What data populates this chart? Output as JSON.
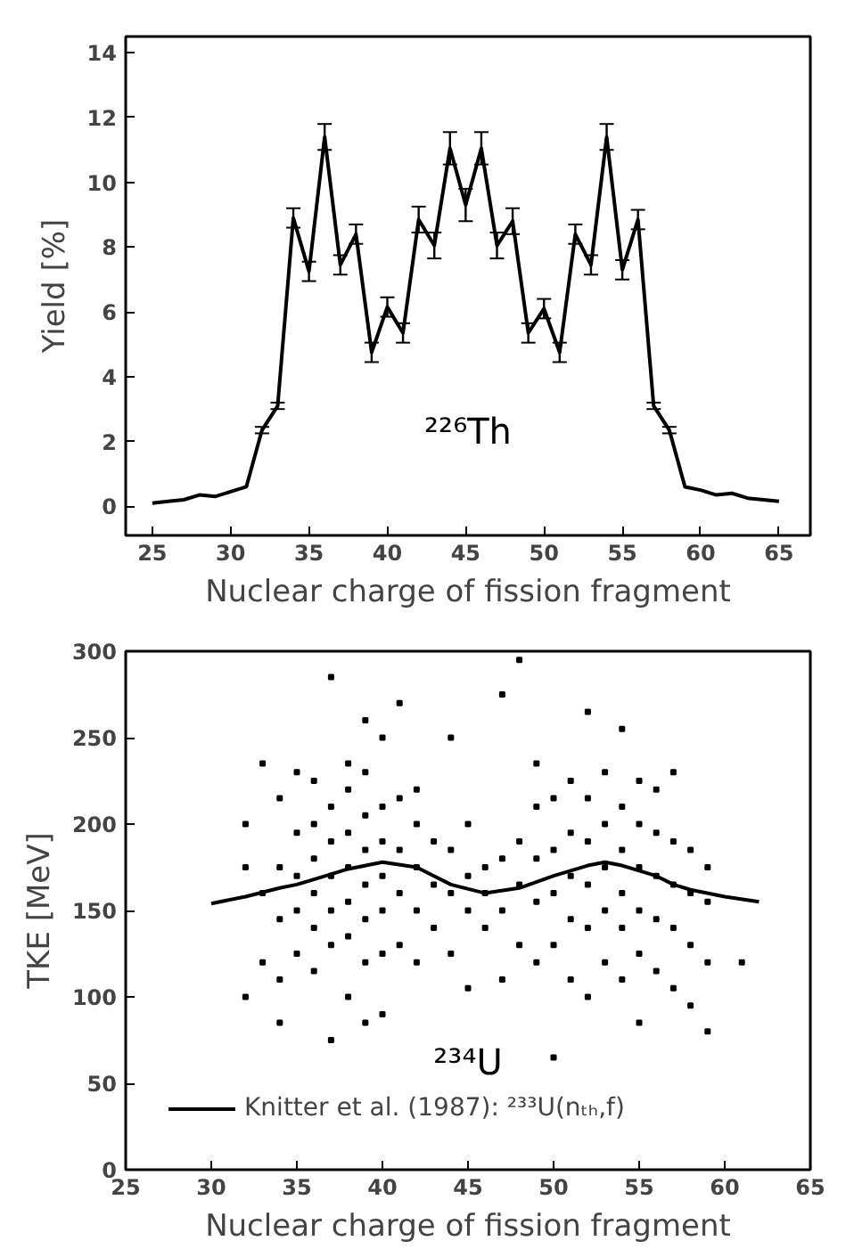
{
  "chart_data": [
    {
      "type": "line",
      "xlabel": "Nuclear charge of fission fragment",
      "ylabel": "Yield [%]",
      "xlim": [
        23.3,
        67
      ],
      "ylim": [
        -0.9,
        14.5
      ],
      "xticks": [
        25,
        30,
        35,
        40,
        45,
        50,
        55,
        60,
        65
      ],
      "yticks": [
        0,
        2,
        4,
        6,
        8,
        10,
        12,
        14
      ],
      "grid": false,
      "legend": false,
      "annotations": [
        "²²⁶Th"
      ],
      "series": [
        {
          "color": "#000000",
          "x": [
            25,
            26,
            27,
            28,
            29,
            30,
            31,
            32,
            33,
            34,
            35,
            36,
            37,
            38,
            39,
            40,
            41,
            42,
            43,
            44,
            45,
            46,
            47,
            48,
            49,
            50,
            51,
            52,
            53,
            54,
            55,
            56,
            57,
            58,
            59,
            60,
            61,
            62,
            63,
            64,
            65
          ],
          "values": [
            0.1,
            0.15,
            0.2,
            0.35,
            0.3,
            0.45,
            0.6,
            2.35,
            3.1,
            8.9,
            7.25,
            11.4,
            7.45,
            8.4,
            4.75,
            6.15,
            5.35,
            8.85,
            8.05,
            11.05,
            9.3,
            11.05,
            8.05,
            8.8,
            5.35,
            6.1,
            4.75,
            8.4,
            7.45,
            11.4,
            7.3,
            8.85,
            3.1,
            2.35,
            0.6,
            0.5,
            0.35,
            0.4,
            0.25,
            0.2,
            0.15
          ],
          "errors": [
            null,
            null,
            null,
            null,
            null,
            null,
            null,
            0.1,
            0.1,
            0.3,
            0.3,
            0.4,
            0.3,
            0.3,
            0.3,
            0.3,
            0.3,
            0.4,
            0.4,
            0.5,
            0.5,
            0.5,
            0.4,
            0.4,
            0.3,
            0.3,
            0.3,
            0.3,
            0.3,
            0.4,
            0.3,
            0.3,
            0.1,
            0.1,
            null,
            null,
            null,
            null,
            null,
            null,
            null
          ]
        }
      ]
    },
    {
      "type": "scatter",
      "xlabel": "Nuclear charge of fission fragment",
      "ylabel": "TKE [MeV]",
      "xlim": [
        25,
        65
      ],
      "ylim": [
        0,
        300
      ],
      "xticks": [
        25,
        30,
        35,
        40,
        45,
        50,
        55,
        60,
        65
      ],
      "yticks": [
        0,
        50,
        100,
        150,
        200,
        250,
        300
      ],
      "grid": false,
      "legend": "bottom left",
      "annotations": [
        "²³⁴U"
      ],
      "series": [
        {
          "type": "scatter",
          "color": "#000000",
          "marker": "square",
          "x": [
            32,
            32,
            32,
            33,
            33,
            33,
            34,
            34,
            34,
            34,
            34,
            35,
            35,
            35,
            35,
            35,
            36,
            36,
            36,
            36,
            36,
            36,
            37,
            37,
            37,
            37,
            37,
            37,
            37,
            38,
            38,
            38,
            38,
            38,
            38,
            38,
            39,
            39,
            39,
            39,
            39,
            39,
            39,
            39,
            40,
            40,
            40,
            40,
            40,
            40,
            40,
            41,
            41,
            41,
            41,
            41,
            42,
            42,
            42,
            42,
            42,
            43,
            43,
            43,
            44,
            44,
            44,
            44,
            45,
            45,
            45,
            45,
            46,
            46,
            46,
            47,
            47,
            47,
            47,
            48,
            48,
            48,
            48,
            49,
            49,
            49,
            49,
            49,
            50,
            50,
            50,
            50,
            50,
            51,
            51,
            51,
            51,
            51,
            52,
            52,
            52,
            52,
            52,
            52,
            53,
            53,
            53,
            53,
            53,
            54,
            54,
            54,
            54,
            54,
            54,
            55,
            55,
            55,
            55,
            55,
            55,
            56,
            56,
            56,
            56,
            56,
            57,
            57,
            57,
            57,
            57,
            58,
            58,
            58,
            58,
            59,
            59,
            59,
            59,
            61
          ],
          "values": [
            100,
            175,
            200,
            120,
            160,
            235,
            110,
            145,
            175,
            215,
            85,
            125,
            150,
            170,
            195,
            230,
            115,
            140,
            160,
            180,
            200,
            225,
            75,
            130,
            150,
            170,
            190,
            210,
            285,
            100,
            135,
            155,
            175,
            195,
            220,
            235,
            85,
            120,
            145,
            165,
            185,
            205,
            230,
            260,
            90,
            125,
            150,
            170,
            190,
            210,
            250,
            130,
            160,
            185,
            215,
            270,
            120,
            150,
            175,
            200,
            220,
            140,
            165,
            190,
            125,
            160,
            185,
            250,
            105,
            150,
            170,
            200,
            140,
            160,
            175,
            110,
            150,
            180,
            275,
            130,
            165,
            190,
            295,
            120,
            155,
            180,
            210,
            235,
            65,
            130,
            160,
            185,
            215,
            110,
            145,
            170,
            195,
            225,
            100,
            140,
            165,
            190,
            215,
            265,
            120,
            150,
            175,
            200,
            230,
            110,
            140,
            160,
            185,
            210,
            255,
            85,
            125,
            150,
            175,
            200,
            225,
            115,
            145,
            170,
            195,
            220,
            105,
            140,
            165,
            190,
            230,
            95,
            130,
            160,
            185,
            80,
            120,
            155,
            175,
            120
          ]
        },
        {
          "type": "line",
          "name": "Knitter et al. (1987): ²³³U(nₜₕ,f)",
          "color": "#000000",
          "x": [
            30,
            32,
            34,
            35,
            36,
            38,
            40,
            42,
            43,
            44,
            46,
            48,
            50,
            52,
            53,
            54,
            56,
            57,
            58,
            60,
            62
          ],
          "values": [
            154,
            158,
            163,
            165,
            168,
            174,
            178,
            175,
            170,
            165,
            160,
            163,
            170,
            176,
            178,
            176,
            170,
            165,
            162,
            158,
            155
          ]
        }
      ]
    }
  ]
}
